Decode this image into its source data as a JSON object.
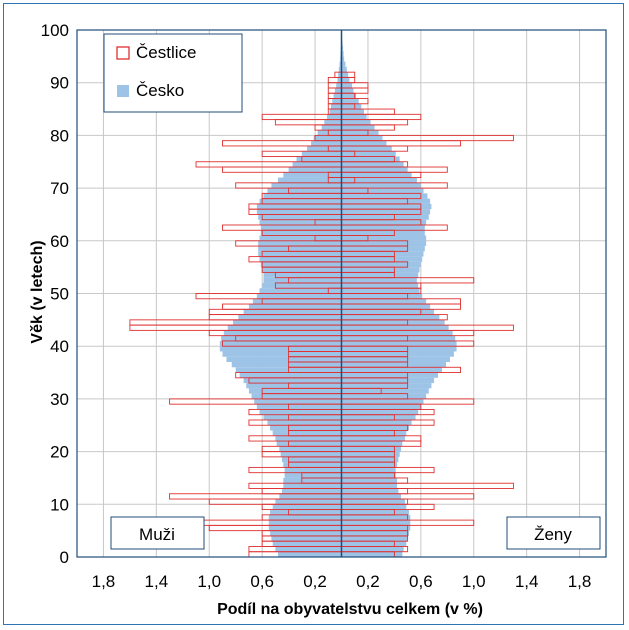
{
  "chart_data": {
    "type": "bar",
    "subtype": "population-pyramid",
    "xlabel": "Podíl na obyvatelstvu celkem (v %)",
    "ylabel": "Věk (v letech)",
    "x_tick_labels": [
      "1,8",
      "1,4",
      "1,0",
      "0,6",
      "0,2",
      "0,2",
      "0,6",
      "1,0",
      "1,4",
      "1,8"
    ],
    "x_tick_values": [
      -1.8,
      -1.4,
      -1.0,
      -0.6,
      -0.2,
      0.2,
      0.6,
      1.0,
      1.4,
      1.8
    ],
    "xlim": [
      -2.0,
      2.0
    ],
    "y_ticks": [
      0,
      10,
      20,
      30,
      40,
      50,
      60,
      70,
      80,
      90,
      100
    ],
    "ylim": [
      0,
      100
    ],
    "grid": true,
    "legend_position": "top-left",
    "colors": {
      "cestlice": "#e03030",
      "cesko": "#9dc3e6",
      "frame": "#2e75b6",
      "axis": "#1f4e79"
    },
    "side_labels": {
      "left": "Muži",
      "right": "Ženy"
    },
    "ages": [
      0,
      1,
      2,
      3,
      4,
      5,
      6,
      7,
      8,
      9,
      10,
      11,
      12,
      13,
      14,
      15,
      16,
      17,
      18,
      19,
      20,
      21,
      22,
      23,
      24,
      25,
      26,
      27,
      28,
      29,
      30,
      31,
      32,
      33,
      34,
      35,
      36,
      37,
      38,
      39,
      40,
      41,
      42,
      43,
      44,
      45,
      46,
      47,
      48,
      49,
      50,
      51,
      52,
      53,
      54,
      55,
      56,
      57,
      58,
      59,
      60,
      61,
      62,
      63,
      64,
      65,
      66,
      67,
      68,
      69,
      70,
      71,
      72,
      73,
      74,
      75,
      76,
      77,
      78,
      79,
      80,
      81,
      82,
      83,
      84,
      85,
      86,
      87,
      88,
      89,
      90,
      91,
      92,
      93,
      94,
      95,
      96,
      97,
      98,
      99
    ],
    "series": [
      {
        "name": "Čestlice",
        "style": "outline",
        "male": [
          0.7,
          0.7,
          0.6,
          0.6,
          0.6,
          1.0,
          1.05,
          0.6,
          0.4,
          0.6,
          1.0,
          1.3,
          0.6,
          0.7,
          0.3,
          0.3,
          0.7,
          0.4,
          0.4,
          0.6,
          0.6,
          0.4,
          0.7,
          0.4,
          0.4,
          0.7,
          0.4,
          0.7,
          0.4,
          1.3,
          0.6,
          0.6,
          0.4,
          0.7,
          0.8,
          0.4,
          0.4,
          0.4,
          0.4,
          0.4,
          0.9,
          0.8,
          1.0,
          1.6,
          1.6,
          1.0,
          1.0,
          0.9,
          0.6,
          1.1,
          0.1,
          0.5,
          0.4,
          0.5,
          0.6,
          0.6,
          0.7,
          0.6,
          0.4,
          0.8,
          0.2,
          0.6,
          0.9,
          0.2,
          0.6,
          0.7,
          0.7,
          0.6,
          0.6,
          0.4,
          0.8,
          0.1,
          0.1,
          0.9,
          1.1,
          0.3,
          0.6,
          0.1,
          0.9,
          0.2,
          0.1,
          0.2,
          0.5,
          0.6,
          0.1,
          0.1,
          0.1,
          0.1,
          0.1,
          0.1,
          0.1,
          0.05,
          0,
          0,
          0,
          0,
          0,
          0,
          0,
          0
        ],
        "female": [
          0.4,
          0.5,
          0.4,
          0.5,
          0.5,
          0.5,
          1.0,
          0.5,
          0.4,
          0.7,
          0.5,
          1.0,
          0.5,
          1.3,
          0.5,
          0.4,
          0.7,
          0.4,
          0.4,
          0.4,
          0.4,
          0.6,
          0.6,
          0.4,
          0.5,
          0.7,
          0.4,
          0.7,
          0.6,
          1.0,
          0.5,
          0.3,
          0.5,
          0.5,
          0.5,
          0.9,
          0.5,
          0.5,
          0.5,
          0.5,
          1.0,
          0.5,
          1.0,
          1.3,
          0.5,
          0.8,
          0.6,
          0.9,
          0.9,
          0.5,
          0.6,
          0.6,
          1.0,
          0.4,
          0.4,
          0.5,
          0.4,
          0.4,
          0.5,
          0.5,
          0.2,
          0.4,
          0.8,
          0.6,
          0.4,
          0.6,
          0.6,
          0.5,
          0.6,
          0.2,
          0.8,
          0.1,
          0.6,
          0.8,
          0.5,
          0.4,
          0.1,
          0.5,
          0.9,
          1.3,
          0.2,
          0.4,
          0.5,
          0.6,
          0.4,
          0.1,
          0.2,
          0.1,
          0.2,
          0.2,
          0.1,
          0.1,
          0,
          0,
          0,
          0,
          0,
          0,
          0,
          0
        ]
      },
      {
        "name": "Česko",
        "style": "fill",
        "male": [
          0.48,
          0.5,
          0.52,
          0.53,
          0.54,
          0.55,
          0.55,
          0.55,
          0.54,
          0.52,
          0.5,
          0.47,
          0.45,
          0.44,
          0.44,
          0.43,
          0.43,
          0.44,
          0.45,
          0.46,
          0.47,
          0.49,
          0.5,
          0.52,
          0.54,
          0.56,
          0.59,
          0.62,
          0.64,
          0.66,
          0.68,
          0.7,
          0.72,
          0.74,
          0.77,
          0.8,
          0.83,
          0.87,
          0.9,
          0.92,
          0.92,
          0.91,
          0.89,
          0.86,
          0.82,
          0.78,
          0.74,
          0.7,
          0.67,
          0.64,
          0.62,
          0.6,
          0.59,
          0.59,
          0.6,
          0.61,
          0.62,
          0.63,
          0.63,
          0.63,
          0.62,
          0.61,
          0.61,
          0.62,
          0.63,
          0.64,
          0.64,
          0.62,
          0.59,
          0.56,
          0.53,
          0.48,
          0.44,
          0.4,
          0.37,
          0.34,
          0.3,
          0.26,
          0.23,
          0.21,
          0.18,
          0.15,
          0.13,
          0.11,
          0.09,
          0.08,
          0.07,
          0.06,
          0.05,
          0.04,
          0.03,
          0.025,
          0.02,
          0.015,
          0.01,
          0.008,
          0.005,
          0.003,
          0.002,
          0.001
        ],
        "female": [
          0.46,
          0.47,
          0.49,
          0.5,
          0.51,
          0.52,
          0.52,
          0.52,
          0.51,
          0.49,
          0.48,
          0.45,
          0.43,
          0.42,
          0.42,
          0.41,
          0.41,
          0.42,
          0.43,
          0.44,
          0.45,
          0.46,
          0.48,
          0.49,
          0.51,
          0.53,
          0.56,
          0.58,
          0.6,
          0.62,
          0.64,
          0.66,
          0.68,
          0.7,
          0.73,
          0.76,
          0.79,
          0.82,
          0.85,
          0.87,
          0.87,
          0.86,
          0.84,
          0.81,
          0.78,
          0.74,
          0.7,
          0.67,
          0.64,
          0.61,
          0.59,
          0.58,
          0.57,
          0.58,
          0.59,
          0.6,
          0.61,
          0.62,
          0.63,
          0.64,
          0.64,
          0.63,
          0.63,
          0.64,
          0.66,
          0.67,
          0.68,
          0.67,
          0.65,
          0.62,
          0.6,
          0.57,
          0.53,
          0.5,
          0.47,
          0.44,
          0.41,
          0.38,
          0.34,
          0.31,
          0.28,
          0.25,
          0.22,
          0.19,
          0.17,
          0.15,
          0.13,
          0.11,
          0.09,
          0.08,
          0.06,
          0.05,
          0.04,
          0.03,
          0.02,
          0.016,
          0.012,
          0.008,
          0.005,
          0.003
        ]
      }
    ]
  }
}
